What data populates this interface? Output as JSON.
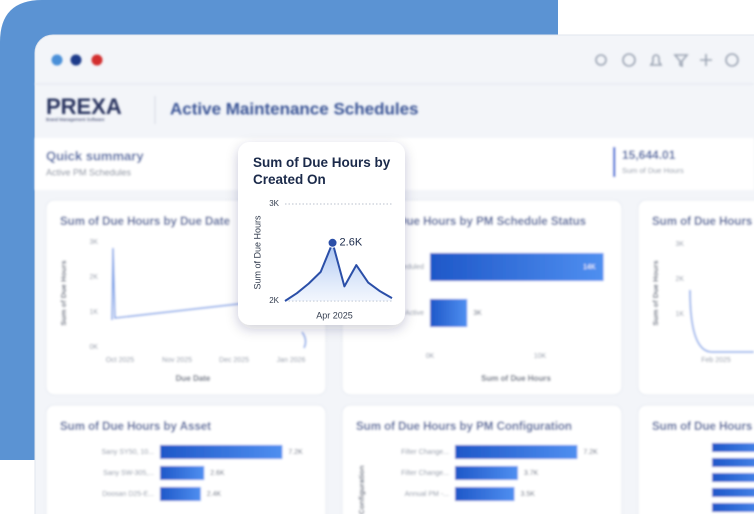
{
  "header": {
    "logo": "PREXA",
    "logo_tagline": "Brand Management Software",
    "title": "Active Maintenance Schedules"
  },
  "summary": {
    "title": "Quick summary",
    "subtitle": "Active PM Schedules",
    "metric_value": "15,644.01",
    "metric_label": "Sum of Due Hours"
  },
  "panels": [
    {
      "title": "Sum of Due Hours by Due Date",
      "y_label": "Sum of Due Hours",
      "x_label": "Due Date",
      "yticks": [
        "3K",
        "2K",
        "1K",
        "0K"
      ],
      "xticks": [
        "Oct 2025",
        "Nov 2025",
        "Dec 2025",
        "Jan 2026"
      ]
    },
    {
      "title": "Sum of Due Hours by PM Schedule Status",
      "x_label": "Sum of Due Hours",
      "xticks": [
        "0K",
        "10K"
      ],
      "categories": [
        "Scheduled",
        "Active"
      ],
      "values": [
        14000,
        3000
      ],
      "value_labels": [
        "14K",
        "3K"
      ]
    },
    {
      "title": "Sum of Due Hours by Created On",
      "y_label": "Sum of Due Hours",
      "yticks": [
        "3K",
        "2K",
        "1K"
      ],
      "xticks": [
        "Feb 2025"
      ]
    },
    {
      "title": "Sum of Due Hours by Asset",
      "categories": [
        "Sany SY50, 10...",
        "Sany SW-305,...",
        "Doosan D25-E..."
      ],
      "values": [
        7200,
        2600,
        2400
      ],
      "value_labels": [
        "7.2K",
        "2.6K",
        "2.4K"
      ]
    },
    {
      "title": "Sum of Due Hours by PM Configuration",
      "y_label": "Configuration",
      "categories": [
        "Filter Change...",
        "Filter Change...",
        "Annual PM -..."
      ],
      "values": [
        7200,
        3700,
        3500
      ],
      "value_labels": [
        "7.2K",
        "3.7K",
        "3.5K"
      ]
    },
    {
      "title": "Sum of Due Hours by"
    }
  ],
  "chart_data": {
    "type": "line",
    "title": "Sum of Due Hours by Created On",
    "y_label": "Sum of Due Hours",
    "x_label": "Apr 2025",
    "values": [
      2000,
      2080,
      2180,
      2300,
      2600,
      2150,
      2370,
      2190,
      2100,
      2030
    ],
    "value_labels": [
      null,
      null,
      null,
      null,
      "2.6K",
      null,
      null,
      null,
      null,
      null
    ],
    "ylim": [
      2000,
      3000
    ],
    "yticks": [
      {
        "value": 2000,
        "label": "2K"
      },
      {
        "value": 3000,
        "label": "3K"
      }
    ],
    "color": "#2b4fa8",
    "grid": true
  }
}
